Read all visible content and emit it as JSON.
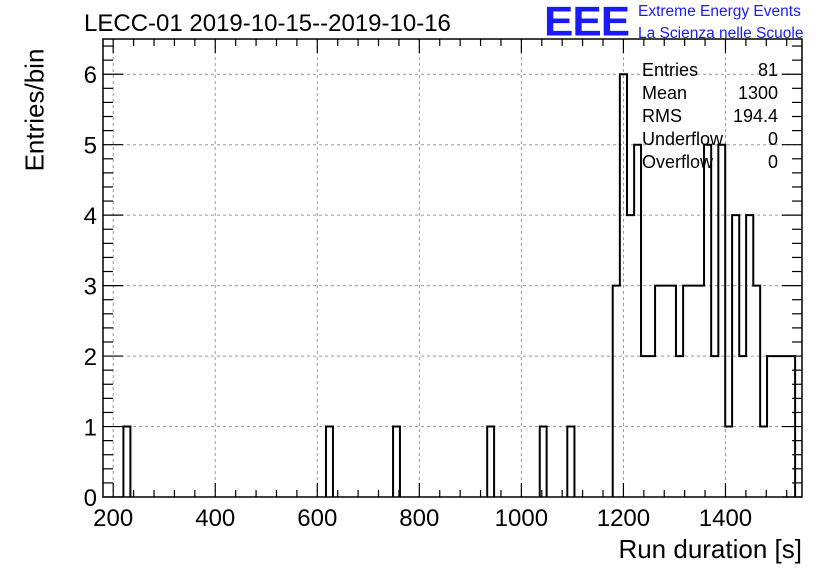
{
  "title": "LECC-01 2019-10-15--2019-10-16",
  "logo": {
    "mark": "EEE",
    "line1": "Extreme Energy Events",
    "line2": "La Scienza nelle Scuole",
    "color": "#1a1aff"
  },
  "stats": [
    {
      "key": "Entries",
      "value": "81"
    },
    {
      "key": "Mean",
      "value": "1300"
    },
    {
      "key": "RMS",
      "value": "194.4"
    },
    {
      "key": "Underflow",
      "value": "0"
    },
    {
      "key": "Overflow",
      "value": "0"
    }
  ],
  "chart_data": {
    "type": "bar",
    "style": "step-histogram",
    "title": "LECC-01 2019-10-15--2019-10-16",
    "xlabel": "Run duration [s]",
    "ylabel": "Entries/bin",
    "xlim": [
      180,
      1550
    ],
    "ylim": [
      0,
      6.5
    ],
    "xticks": [
      200,
      400,
      600,
      800,
      1000,
      1200,
      1400
    ],
    "yticks": [
      0,
      1,
      2,
      3,
      4,
      5,
      6
    ],
    "grid": true,
    "line_color": "#000000",
    "bins": [
      {
        "x0": 220,
        "x1": 233.7,
        "count": 1
      },
      {
        "x0": 617,
        "x1": 630.7,
        "count": 1
      },
      {
        "x0": 748.5,
        "x1": 762,
        "count": 1
      },
      {
        "x0": 933,
        "x1": 946.5,
        "count": 1
      },
      {
        "x0": 1036,
        "x1": 1049.5,
        "count": 1
      },
      {
        "x0": 1090,
        "x1": 1104,
        "count": 1
      },
      {
        "x0": 1179,
        "x1": 1193,
        "count": 3
      },
      {
        "x0": 1193,
        "x1": 1207,
        "count": 6
      },
      {
        "x0": 1207,
        "x1": 1221,
        "count": 4
      },
      {
        "x0": 1221,
        "x1": 1234.5,
        "count": 5
      },
      {
        "x0": 1234.5,
        "x1": 1262,
        "count": 2
      },
      {
        "x0": 1262,
        "x1": 1303,
        "count": 3
      },
      {
        "x0": 1303,
        "x1": 1317,
        "count": 2
      },
      {
        "x0": 1317,
        "x1": 1358,
        "count": 3
      },
      {
        "x0": 1358,
        "x1": 1372,
        "count": 5
      },
      {
        "x0": 1372,
        "x1": 1386,
        "count": 2
      },
      {
        "x0": 1386,
        "x1": 1399.5,
        "count": 5
      },
      {
        "x0": 1399.5,
        "x1": 1413,
        "count": 1
      },
      {
        "x0": 1413,
        "x1": 1427,
        "count": 4
      },
      {
        "x0": 1427,
        "x1": 1440.5,
        "count": 2
      },
      {
        "x0": 1440.5,
        "x1": 1454.5,
        "count": 4
      },
      {
        "x0": 1454.5,
        "x1": 1468,
        "count": 3
      },
      {
        "x0": 1468,
        "x1": 1481.5,
        "count": 1
      },
      {
        "x0": 1481.5,
        "x1": 1536.5,
        "count": 2
      }
    ]
  }
}
